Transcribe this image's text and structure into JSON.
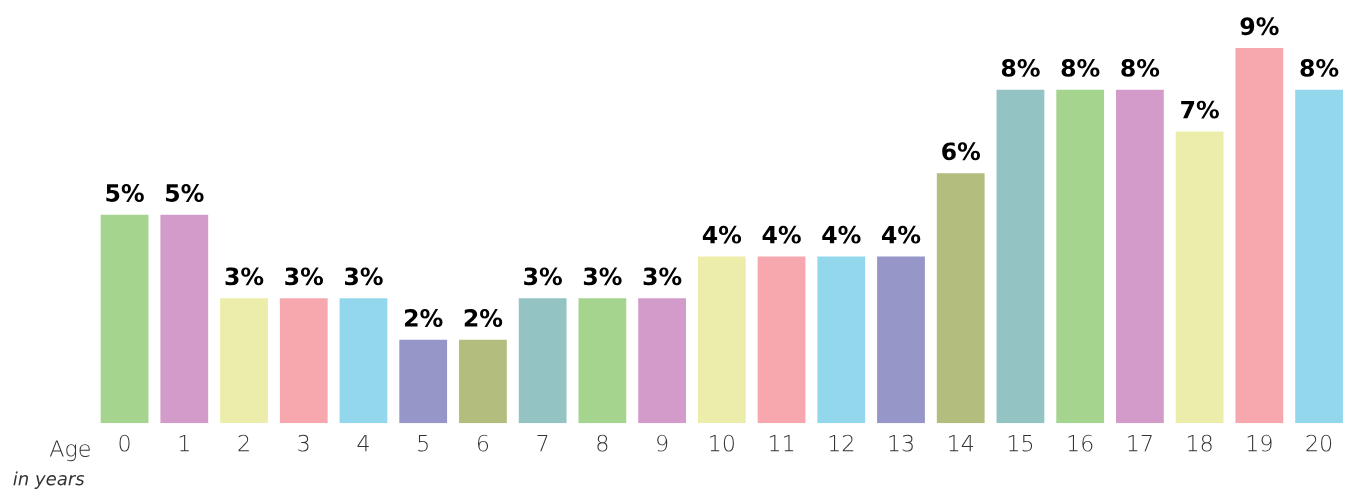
{
  "chart_data": {
    "type": "bar",
    "xlabel": "Age",
    "annotations": [
      "in years"
    ],
    "categories": [
      "0",
      "1",
      "2",
      "3",
      "4",
      "5",
      "6",
      "7",
      "8",
      "9",
      "10",
      "11",
      "12",
      "13",
      "14",
      "15",
      "16",
      "17",
      "18",
      "19",
      "20"
    ],
    "values": [
      5,
      5,
      3,
      3,
      3,
      2,
      2,
      3,
      3,
      3,
      4,
      4,
      4,
      4,
      6,
      8,
      8,
      8,
      7,
      9,
      8
    ],
    "value_labels": [
      "5%",
      "5%",
      "3%",
      "3%",
      "3%",
      "2%",
      "2%",
      "3%",
      "3%",
      "3%",
      "4%",
      "4%",
      "4%",
      "4%",
      "6%",
      "8%",
      "8%",
      "8%",
      "7%",
      "9%",
      "8%"
    ],
    "colors": [
      "#a5d48e",
      "#d39bc9",
      "#ecedaa",
      "#f6a8ae",
      "#93d7ed",
      "#9696c8",
      "#b2bd7e",
      "#93c3c3",
      "#a5d48e",
      "#d39bc9",
      "#ecedaa",
      "#f6a8ae",
      "#93d7ed",
      "#9696c8",
      "#b2bd7e",
      "#93c3c3",
      "#a5d48e",
      "#d39bc9",
      "#ecedaa",
      "#f6a8ae",
      "#93d7ed"
    ],
    "grid": false,
    "legend": false
  }
}
